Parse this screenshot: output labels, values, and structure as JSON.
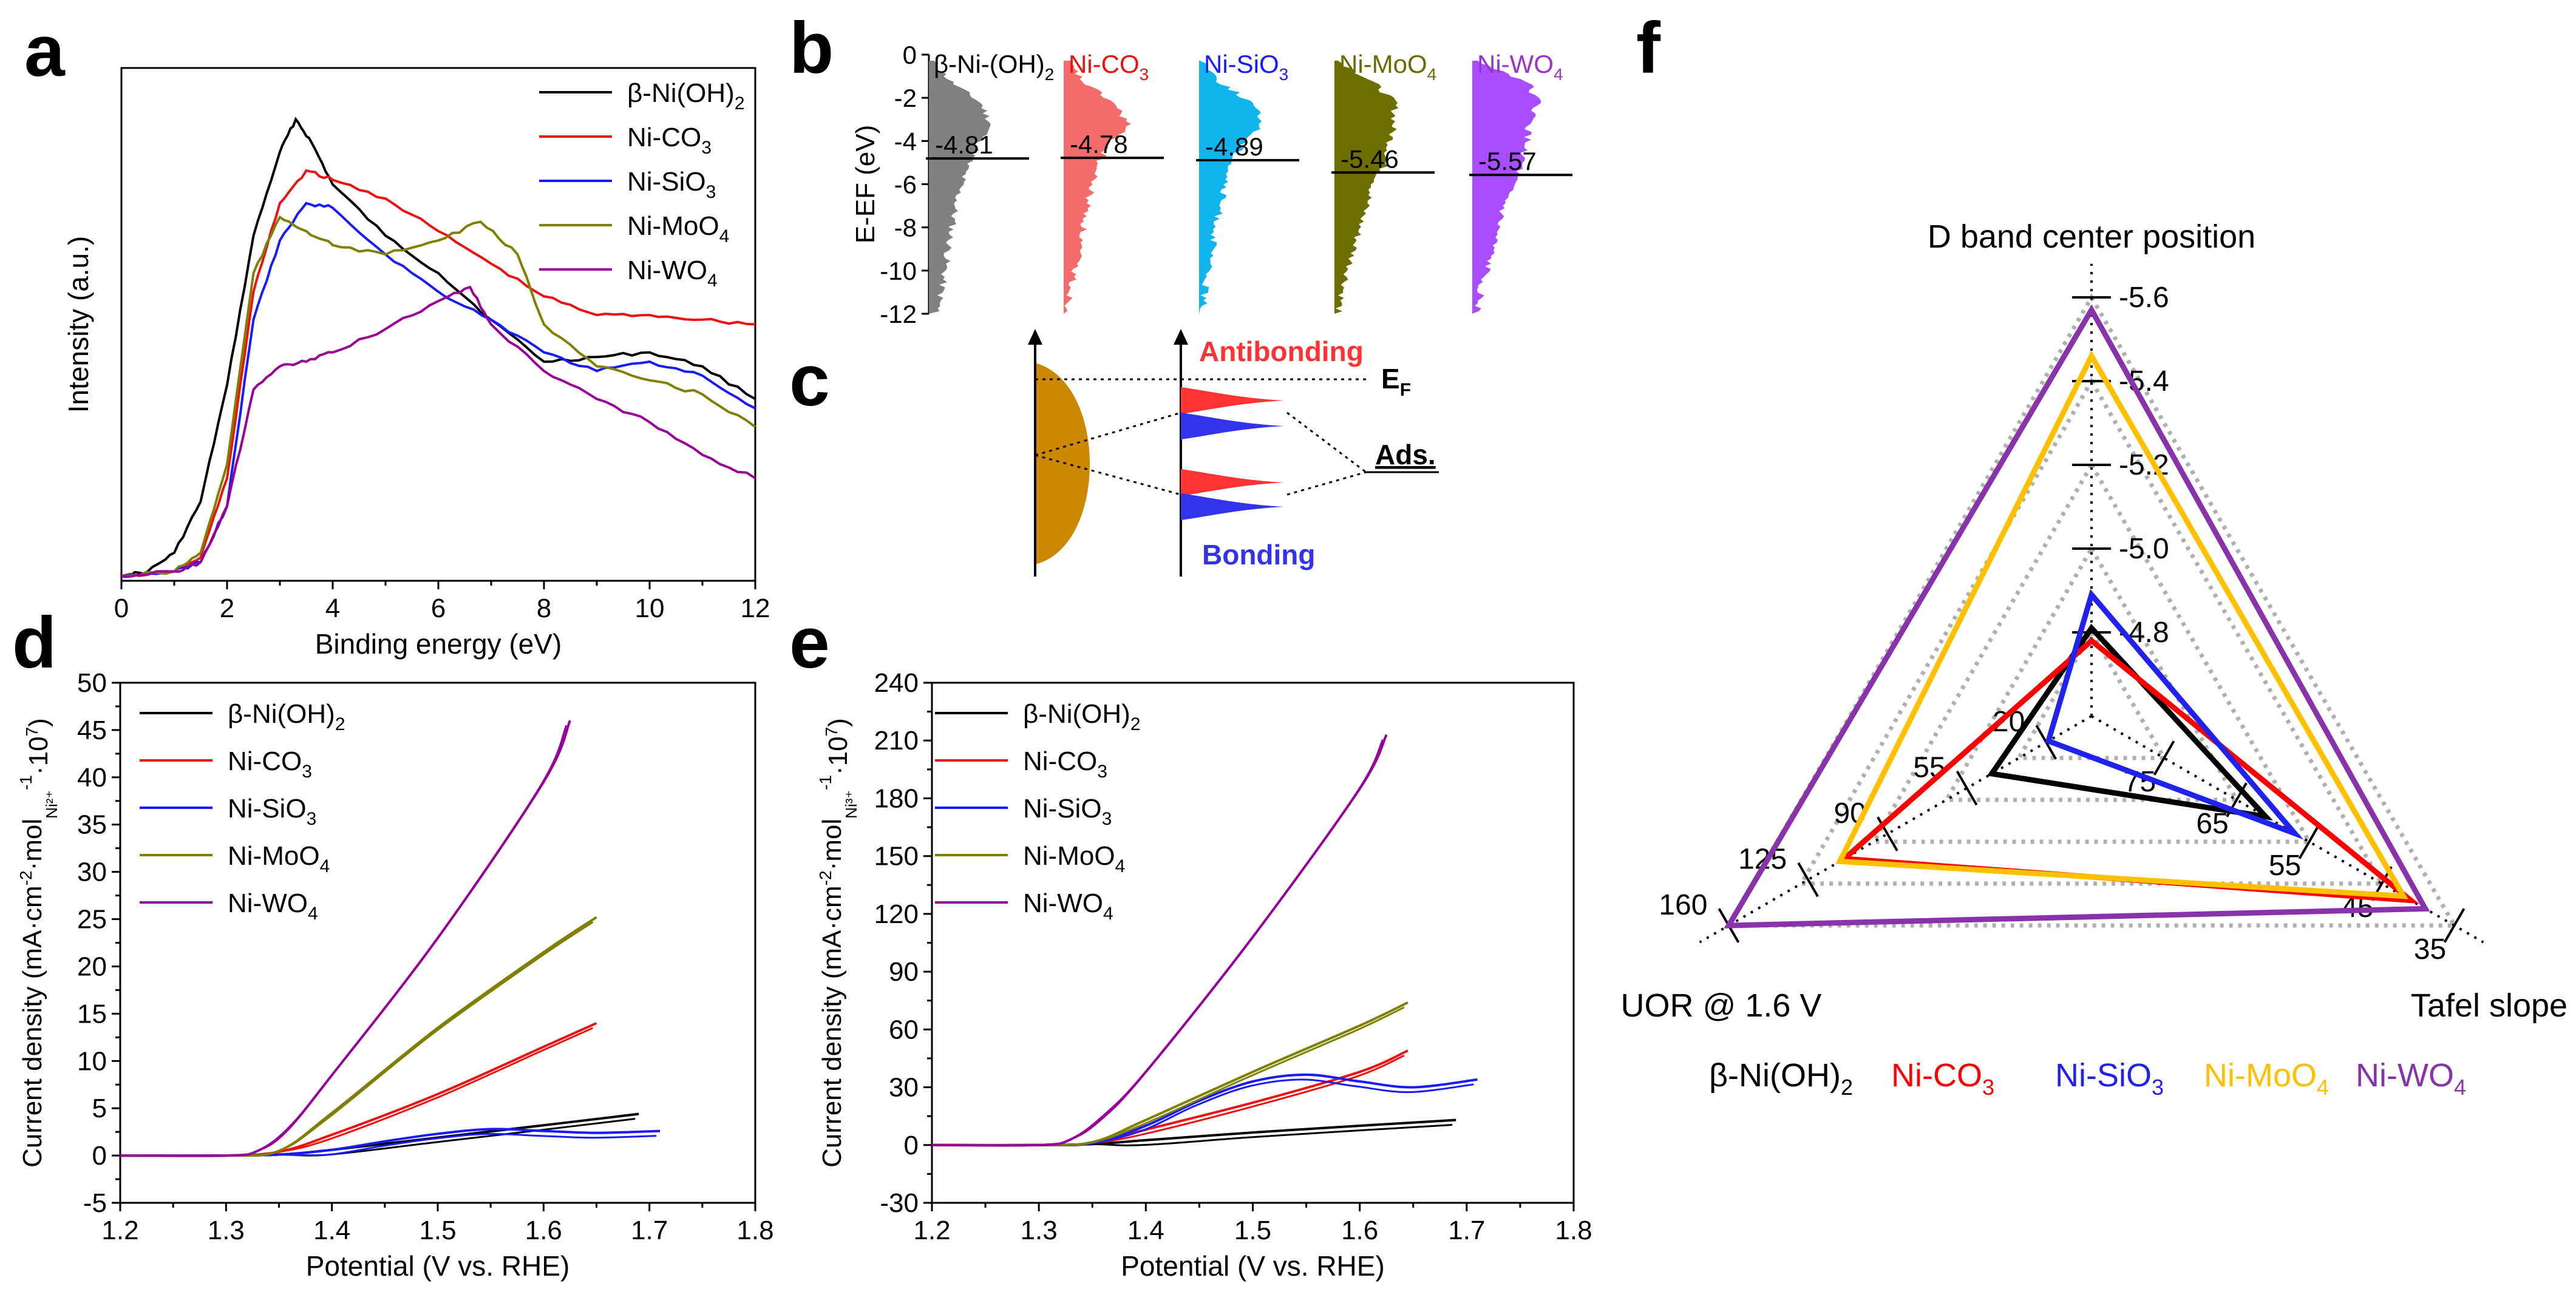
{
  "figure_title": "",
  "chart_data": [
    {
      "id": "a",
      "type": "line",
      "letter": "a",
      "xlabel": "Binding energy (eV)",
      "ylabel": "Intensity (a.u.)",
      "xlim": [
        0,
        12
      ],
      "ylim": [
        0,
        1.1
      ],
      "xticks": [
        "0",
        "2",
        "4",
        "6",
        "8",
        "10",
        "12"
      ],
      "yticks": [],
      "legend_position": "top-right",
      "series": [
        {
          "name": "β-Ni(OH)₂",
          "legend_label": "β-Ni(OH)",
          "legend_sub": "2",
          "color": "#000000",
          "x": [
            0,
            0.5,
            1,
            1.5,
            2,
            2.5,
            3,
            3.3,
            3.6,
            4,
            5,
            6,
            7,
            8,
            9,
            10,
            11,
            12
          ],
          "y": [
            0.01,
            0.02,
            0.06,
            0.17,
            0.42,
            0.74,
            0.92,
            0.99,
            0.94,
            0.85,
            0.74,
            0.66,
            0.56,
            0.47,
            0.48,
            0.49,
            0.46,
            0.39
          ]
        },
        {
          "name": "Ni-CO₃",
          "legend_label": "Ni-CO",
          "legend_sub": "3",
          "color": "#ee1111",
          "x": [
            0,
            1,
            1.5,
            2,
            2.5,
            3,
            3.5,
            4,
            5,
            6,
            7,
            8,
            9,
            10,
            11,
            12
          ],
          "y": [
            0.01,
            0.02,
            0.05,
            0.22,
            0.62,
            0.81,
            0.88,
            0.86,
            0.82,
            0.75,
            0.68,
            0.61,
            0.57,
            0.57,
            0.56,
            0.55
          ]
        },
        {
          "name": "Ni-SiO₃",
          "legend_label": "Ni-SiO",
          "legend_sub": "3",
          "color": "#1a1aff",
          "x": [
            0,
            1,
            1.5,
            2,
            2.5,
            3,
            3.5,
            4,
            5,
            6,
            7,
            8,
            9,
            10,
            11,
            12
          ],
          "y": [
            0.01,
            0.02,
            0.04,
            0.16,
            0.56,
            0.73,
            0.81,
            0.8,
            0.7,
            0.62,
            0.56,
            0.49,
            0.45,
            0.47,
            0.44,
            0.37
          ]
        },
        {
          "name": "Ni-MoO₄",
          "legend_label": "Ni-MoO",
          "legend_sub": "4",
          "color": "#7f7f00",
          "x": [
            0,
            1,
            1.5,
            2,
            2.5,
            3,
            3.5,
            4,
            5,
            6,
            6.8,
            7.5,
            8,
            9,
            10,
            11,
            12
          ],
          "y": [
            0.01,
            0.02,
            0.06,
            0.25,
            0.66,
            0.78,
            0.75,
            0.72,
            0.7,
            0.73,
            0.77,
            0.7,
            0.55,
            0.46,
            0.43,
            0.4,
            0.33
          ]
        },
        {
          "name": "Ni-WO₄",
          "legend_label": "Ni-WO",
          "legend_sub": "4",
          "color": "#990099",
          "x": [
            0,
            1,
            1.5,
            2,
            2.5,
            3,
            3.5,
            4,
            5,
            6,
            6.6,
            7,
            8,
            9,
            10,
            11,
            12
          ],
          "y": [
            0.01,
            0.02,
            0.04,
            0.16,
            0.41,
            0.46,
            0.47,
            0.49,
            0.54,
            0.6,
            0.63,
            0.55,
            0.45,
            0.39,
            0.34,
            0.27,
            0.22
          ]
        }
      ]
    },
    {
      "id": "b",
      "type": "area",
      "letter": "b",
      "ylabel": "E-EF (eV)",
      "ylim": [
        -12,
        0
      ],
      "yticks": [
        "0",
        "-2",
        "-4",
        "-6",
        "-8",
        "-10",
        "-12"
      ],
      "series": [
        {
          "name": "β-Ni(OH)₂",
          "label": "β-Ni-(OH)",
          "label_sub": "2",
          "label_color": "#000000",
          "fill": "#808080",
          "d_band_center": -4.81,
          "d_band_center_label": "-4.81",
          "widths": [
            0.05,
            0.32,
            0.75,
            0.9,
            0.72,
            0.55,
            0.45,
            0.38,
            0.33,
            0.28,
            0.23,
            0.18,
            0.12
          ]
        },
        {
          "name": "Ni-CO₃",
          "label": "Ni-CO",
          "label_sub": "3",
          "label_color": "#ee1111",
          "fill": "#f36b6b",
          "d_band_center": -4.78,
          "d_band_center_label": "-4.78",
          "widths": [
            0.05,
            0.28,
            0.72,
            0.94,
            0.65,
            0.48,
            0.4,
            0.34,
            0.28,
            0.22,
            0.16,
            0.1,
            0.05
          ]
        },
        {
          "name": "Ni-SiO₃",
          "label": "Ni-SiO",
          "label_sub": "3",
          "label_color": "#1a1aff",
          "fill": "#11b5ee",
          "d_band_center": -4.89,
          "d_band_center_label": "-4.89",
          "widths": [
            0.05,
            0.3,
            0.76,
            0.92,
            0.62,
            0.45,
            0.36,
            0.3,
            0.24,
            0.18,
            0.12,
            0.08,
            0.04
          ]
        },
        {
          "name": "Ni-MoO₄",
          "label": "Ni-MoO",
          "label_sub": "4",
          "label_color": "#6b6b00",
          "fill": "#6e6e00",
          "d_band_center": -5.46,
          "d_band_center_label": "-5.46",
          "widths": [
            0.05,
            0.55,
            0.88,
            0.86,
            0.8,
            0.72,
            0.55,
            0.45,
            0.36,
            0.28,
            0.2,
            0.12,
            0.05
          ]
        },
        {
          "name": "Ni-WO₄",
          "label": "Ni-WO",
          "label_sub": "4",
          "label_color": "#9933cc",
          "fill": "#a84dff",
          "d_band_center": -5.57,
          "d_band_center_label": "-5.57",
          "widths": [
            0.05,
            0.8,
            0.95,
            0.82,
            0.78,
            0.7,
            0.55,
            0.44,
            0.36,
            0.28,
            0.2,
            0.12,
            0.06
          ]
        }
      ]
    },
    {
      "id": "c",
      "type": "schematic",
      "letter": "c",
      "antibonding_label": "Antibonding",
      "bonding_label": "Bonding",
      "fermi_label": "E",
      "fermi_sub": "F",
      "ads_label": "Ads.",
      "colors": {
        "metal_band": "#cc8800",
        "antibonding": "#ff3333",
        "bonding": "#3333ee"
      }
    },
    {
      "id": "d",
      "type": "line",
      "letter": "d",
      "xlabel": "Potential (V vs. RHE)",
      "ylabel_parts": [
        "Current density (mA·cm",
        "-2",
        "·mol",
        "Ni²⁺",
        "-1",
        "·10",
        "7",
        ")"
      ],
      "xlim": [
        1.2,
        1.8
      ],
      "ylim": [
        -5,
        50
      ],
      "xticks": [
        "1.2",
        "1.3",
        "1.4",
        "1.5",
        "1.6",
        "1.7",
        "1.8"
      ],
      "yticks": [
        "-5",
        "0",
        "5",
        "10",
        "15",
        "20",
        "25",
        "30",
        "35",
        "40",
        "45",
        "50"
      ],
      "legend_position": "top-left",
      "series": [
        {
          "name": "β-Ni(OH)₂",
          "legend_label": "β-Ni(OH)",
          "legend_sub": "2",
          "color": "#000000",
          "x": [
            1.2,
            1.3,
            1.35,
            1.4,
            1.5,
            1.6,
            1.69
          ],
          "y": [
            0,
            0,
            0.1,
            0.6,
            1.9,
            3.2,
            4.4
          ]
        },
        {
          "name": "Ni-CO₃",
          "legend_label": "Ni-CO",
          "legend_sub": "3",
          "color": "#ee1111",
          "x": [
            1.2,
            1.3,
            1.35,
            1.4,
            1.5,
            1.6,
            1.65
          ],
          "y": [
            0,
            0,
            0.4,
            2.2,
            6.5,
            11.5,
            14.0
          ]
        },
        {
          "name": "Ni-SiO₃",
          "legend_label": "Ni-SiO",
          "legend_sub": "3",
          "color": "#1a1aff",
          "x": [
            1.2,
            1.3,
            1.35,
            1.4,
            1.45,
            1.5,
            1.55,
            1.6,
            1.65,
            1.71
          ],
          "y": [
            0,
            0,
            0.1,
            0.6,
            1.5,
            2.3,
            2.8,
            2.6,
            2.4,
            2.6
          ]
        },
        {
          "name": "Ni-MoO₄",
          "legend_label": "Ni-MoO",
          "legend_sub": "4",
          "color": "#7f7f00",
          "x": [
            1.2,
            1.3,
            1.35,
            1.4,
            1.5,
            1.6,
            1.65
          ],
          "y": [
            0,
            0,
            0.5,
            4.5,
            13.5,
            21.5,
            25.2
          ]
        },
        {
          "name": "Ni-WO₄",
          "legend_label": "Ni-WO",
          "legend_sub": "4",
          "color": "#990099",
          "x": [
            1.2,
            1.3,
            1.33,
            1.36,
            1.4,
            1.5,
            1.6,
            1.625
          ],
          "y": [
            0,
            0,
            0.5,
            3.0,
            8.5,
            23.0,
            39.5,
            46.0
          ]
        }
      ]
    },
    {
      "id": "e",
      "type": "line",
      "letter": "e",
      "xlabel": "Potential (V vs. RHE)",
      "ylabel_parts": [
        "Current density (mA·cm",
        "-2",
        "·mol",
        "Ni³⁺",
        "-1",
        "·10",
        "7",
        ")"
      ],
      "xlim": [
        1.2,
        1.8
      ],
      "ylim": [
        -30,
        240
      ],
      "xticks": [
        "1.2",
        "1.3",
        "1.4",
        "1.5",
        "1.6",
        "1.7",
        "1.8"
      ],
      "yticks": [
        "-30",
        "0",
        "30",
        "60",
        "90",
        "120",
        "150",
        "180",
        "210",
        "240"
      ],
      "legend_position": "top-left",
      "series": [
        {
          "name": "β-Ni(OH)₂",
          "legend_label": "β-Ni(OH)",
          "legend_sub": "2",
          "color": "#000000",
          "x": [
            1.2,
            1.3,
            1.35,
            1.4,
            1.5,
            1.6,
            1.69
          ],
          "y": [
            0,
            0,
            0.5,
            2.5,
            6.5,
            10.0,
            13.0
          ]
        },
        {
          "name": "Ni-CO₃",
          "legend_label": "Ni-CO",
          "legend_sub": "3",
          "color": "#ee1111",
          "x": [
            1.2,
            1.3,
            1.35,
            1.4,
            1.5,
            1.6,
            1.645
          ],
          "y": [
            0,
            0,
            1.0,
            8.0,
            22.0,
            38.0,
            49.0
          ]
        },
        {
          "name": "Ni-SiO₃",
          "legend_label": "Ni-SiO",
          "legend_sub": "3",
          "color": "#1a1aff",
          "x": [
            1.2,
            1.3,
            1.35,
            1.4,
            1.45,
            1.5,
            1.55,
            1.6,
            1.65,
            1.71
          ],
          "y": [
            0,
            0,
            1.0,
            10.0,
            23.0,
            33.0,
            36.5,
            33.0,
            30.0,
            34.0
          ]
        },
        {
          "name": "Ni-MoO₄",
          "legend_label": "Ni-MoO",
          "legend_sub": "4",
          "color": "#7f7f00",
          "x": [
            1.2,
            1.3,
            1.35,
            1.4,
            1.5,
            1.6,
            1.645
          ],
          "y": [
            0,
            0,
            1.5,
            13.0,
            38.0,
            62.0,
            74.0
          ]
        },
        {
          "name": "Ni-WO₄",
          "legend_label": "Ni-WO",
          "legend_sub": "4",
          "color": "#990099",
          "x": [
            1.2,
            1.3,
            1.33,
            1.36,
            1.4,
            1.5,
            1.6,
            1.625
          ],
          "y": [
            0,
            0,
            3.0,
            15.0,
            38.0,
            108.0,
            185.0,
            213.0
          ]
        }
      ]
    },
    {
      "id": "f",
      "type": "radar",
      "letter": "f",
      "axes": [
        {
          "name": "D band center position",
          "min": -4.6,
          "max": -5.6,
          "ticks": [
            "-4.8",
            "-5.0",
            "-5.2",
            "-5.4",
            "-5.6"
          ],
          "tick_values": [
            -4.8,
            -5.0,
            -5.2,
            -5.4,
            -5.6
          ]
        },
        {
          "name": "Tafel slope",
          "min": 85,
          "max": 35,
          "ticks": [
            "75",
            "65",
            "55",
            "45",
            "35"
          ],
          "tick_values": [
            75,
            65,
            55,
            45,
            35
          ]
        },
        {
          "name": "UOR @ 1.6 V",
          "min": 0,
          "max": 160,
          "ticks": [
            "20",
            "55",
            "90",
            "125",
            "160"
          ],
          "tick_values": [
            20,
            55,
            90,
            125,
            160
          ]
        }
      ],
      "series": [
        {
          "name": "β-Ni(OH)₂",
          "legend_label": "β-Ni(OH)",
          "legend_sub": "2",
          "color": "#000000",
          "values": [
            -4.81,
            61,
            44
          ]
        },
        {
          "name": "Ni-CO₃",
          "legend_label": "Ni-CO",
          "legend_sub": "3",
          "color": "#ff0000",
          "values": [
            -4.78,
            41,
            109
          ]
        },
        {
          "name": "Ni-SiO₃",
          "legend_label": "Ni-SiO",
          "legend_sub": "3",
          "color": "#2222ee",
          "values": [
            -4.89,
            57,
            19
          ]
        },
        {
          "name": "Ni-MoO₄",
          "legend_label": "Ni-MoO",
          "legend_sub": "4",
          "color": "#ffc000",
          "values": [
            -5.46,
            42,
            111
          ]
        },
        {
          "name": "Ni-WO₄",
          "legend_label": "Ni-WO",
          "legend_sub": "4",
          "color": "#8833aa",
          "values": [
            -5.57,
            39,
            160
          ]
        }
      ]
    }
  ]
}
